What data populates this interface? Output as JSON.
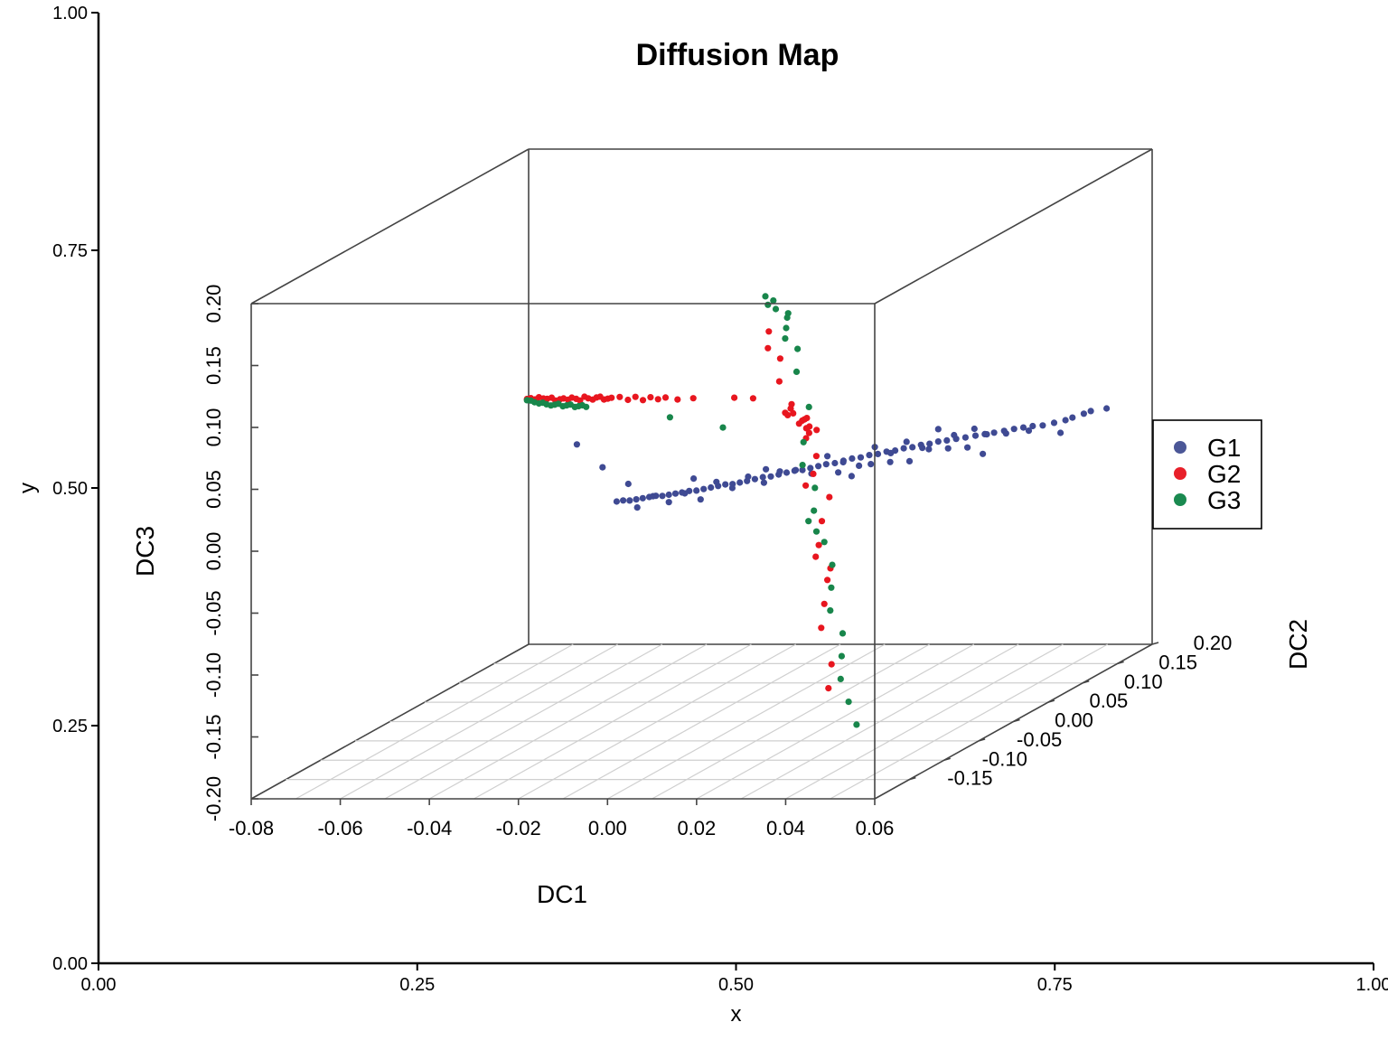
{
  "chart_data": {
    "type": "scatter",
    "title": "Diffusion Map",
    "outer_axes": {
      "xlabel": "x",
      "ylabel": "y",
      "xlim": [
        0,
        1
      ],
      "ylim": [
        0,
        1
      ],
      "xticks": [
        "0.00",
        "0.25",
        "0.50",
        "0.75",
        "1.00"
      ],
      "yticks": [
        "0.00",
        "0.25",
        "0.50",
        "0.75",
        "1.00"
      ]
    },
    "axes3d": {
      "x": {
        "label": "DC1",
        "range": [
          -0.08,
          0.06
        ],
        "ticks": [
          "-0.08",
          "-0.06",
          "-0.04",
          "-0.02",
          "0.00",
          "0.02",
          "0.04",
          "0.06"
        ]
      },
      "y": {
        "label": "DC2",
        "range": [
          -0.2,
          0.2
        ],
        "ticks": [
          "-0.15",
          "-0.10",
          "-0.05",
          "0.00",
          "0.05",
          "0.10",
          "0.15",
          "0.20"
        ]
      },
      "z": {
        "label": "DC3",
        "range": [
          -0.2,
          0.2
        ],
        "ticks": [
          "-0.20",
          "-0.15",
          "-0.10",
          "-0.05",
          "0.00",
          "0.05",
          "0.10",
          "0.15",
          "0.20"
        ]
      }
    },
    "grid": true,
    "legend": {
      "position": "right",
      "entries": [
        {
          "label": "G1",
          "color": "#4b5797"
        },
        {
          "label": "G2",
          "color": "#e8202a"
        },
        {
          "label": "G3",
          "color": "#1a8a50"
        }
      ]
    },
    "series": [
      {
        "name": "G1",
        "color": "#3f4a93",
        "x": [
          0.056,
          0.054,
          0.054,
          0.053,
          0.053,
          0.052,
          0.051,
          0.05,
          0.049,
          0.048,
          0.047,
          0.046,
          0.045,
          0.044,
          0.043,
          0.042,
          0.041,
          0.04,
          0.039,
          0.038,
          0.037,
          0.036,
          0.035,
          0.034,
          0.033,
          0.032,
          0.031,
          0.03,
          0.029,
          0.028,
          0.027,
          0.026,
          0.025,
          0.024,
          0.023,
          0.022,
          0.021,
          0.02,
          0.019,
          0.018,
          0.017,
          0.016,
          0.015,
          0.014,
          0.013,
          0.012,
          0.011,
          0.01,
          0.009,
          0.008,
          0.007,
          0.006,
          0.005,
          0.004,
          0.003,
          0.002,
          0.001,
          0.0,
          -0.001,
          -0.002,
          0.045,
          0.042,
          0.04,
          0.038,
          0.036,
          0.034,
          0.032,
          0.03,
          0.028,
          0.026,
          0.024,
          0.022,
          0.02,
          0.018,
          0.016,
          0.014,
          0.012,
          0.01,
          0.008,
          0.006,
          0.004,
          0.002,
          0.055,
          0.05,
          0.03,
          0.02,
          0.01,
          0.0,
          -0.005,
          -0.01,
          0.051,
          0.049,
          0.047,
          0.045,
          0.043,
          0.041,
          0.039,
          0.037,
          0.035,
          0.033
        ],
        "y": [
          0.16,
          0.15,
          0.14,
          0.13,
          0.12,
          0.11,
          0.1,
          0.092,
          0.085,
          0.078,
          0.07,
          0.062,
          0.055,
          0.048,
          0.04,
          0.033,
          0.026,
          0.02,
          0.014,
          0.008,
          0.002,
          -0.004,
          -0.01,
          -0.016,
          -0.022,
          -0.028,
          -0.034,
          -0.04,
          -0.046,
          -0.052,
          -0.058,
          -0.063,
          -0.068,
          -0.073,
          -0.078,
          -0.083,
          -0.088,
          -0.093,
          -0.098,
          -0.103,
          -0.108,
          -0.112,
          -0.116,
          -0.12,
          -0.124,
          -0.128,
          -0.132,
          -0.136,
          -0.14,
          -0.144,
          -0.147,
          -0.15,
          -0.153,
          -0.156,
          -0.159,
          -0.162,
          -0.165,
          -0.168,
          -0.171,
          -0.174,
          0.04,
          0.03,
          0.02,
          0.01,
          0.0,
          -0.01,
          -0.02,
          -0.03,
          -0.04,
          -0.05,
          -0.06,
          -0.07,
          -0.08,
          -0.09,
          -0.1,
          -0.11,
          -0.12,
          -0.13,
          -0.14,
          -0.15,
          -0.16,
          -0.17,
          0.1,
          0.02,
          -0.06,
          -0.1,
          -0.14,
          -0.17,
          -0.175,
          -0.18,
          0.08,
          0.06,
          0.045,
          0.03,
          0.015,
          0.0,
          -0.015,
          -0.03,
          -0.045,
          -0.06
        ],
        "z": [
          0.003,
          0.004,
          0.005,
          0.005,
          0.006,
          0.007,
          0.008,
          0.01,
          0.011,
          0.012,
          0.013,
          0.014,
          0.015,
          0.016,
          0.017,
          0.018,
          0.019,
          0.02,
          0.02,
          0.021,
          0.021,
          0.022,
          0.022,
          0.023,
          0.023,
          0.024,
          0.024,
          0.025,
          0.025,
          0.025,
          0.026,
          0.026,
          0.026,
          0.026,
          0.027,
          0.027,
          0.027,
          0.027,
          0.028,
          0.028,
          0.028,
          0.028,
          0.028,
          0.029,
          0.029,
          0.029,
          0.029,
          0.029,
          0.03,
          0.03,
          0.03,
          0.03,
          0.03,
          0.031,
          0.031,
          0.031,
          0.031,
          0.031,
          0.032,
          0.032,
          0.024,
          0.022,
          0.03,
          0.018,
          0.026,
          0.02,
          0.028,
          0.016,
          0.022,
          0.03,
          0.019,
          0.025,
          0.027,
          0.021,
          0.029,
          0.023,
          0.031,
          0.02,
          0.028,
          0.024,
          0.032,
          0.026,
          0.002,
          0.01,
          0.02,
          0.035,
          0.04,
          0.045,
          0.06,
          0.08,
          0.01,
          0.014,
          0.018,
          0.012,
          0.016,
          0.02,
          0.015,
          0.019,
          0.022,
          0.017
        ]
      },
      {
        "name": "G2",
        "color": "#e8161f",
        "x": [
          -0.05,
          -0.049,
          -0.048,
          -0.047,
          -0.046,
          -0.045,
          -0.044,
          -0.043,
          -0.042,
          -0.041,
          -0.04,
          -0.039,
          -0.038,
          -0.037,
          -0.036,
          -0.035,
          -0.034,
          -0.033,
          -0.032,
          -0.031,
          -0.03,
          -0.029,
          -0.027,
          -0.025,
          -0.023,
          -0.021,
          -0.019,
          -0.017,
          -0.015,
          -0.012,
          -0.008,
          0.002,
          0.007,
          0.03,
          0.029,
          0.031,
          0.03,
          0.032,
          0.031,
          0.029,
          0.03,
          0.028,
          0.032,
          0.031,
          0.03,
          0.029,
          0.031,
          0.03,
          0.032,
          0.03,
          0.029,
          0.031,
          0.03,
          0.028,
          0.033,
          0.031,
          0.03,
          0.029,
          0.032,
          0.031,
          0.03,
          0.029,
          0.031,
          0.03
        ],
        "y": [
          0.005,
          0.004,
          0.004,
          0.003,
          0.003,
          0.002,
          0.002,
          0.001,
          0.001,
          0.0,
          0.0,
          -0.001,
          -0.001,
          -0.002,
          -0.002,
          -0.003,
          -0.003,
          -0.004,
          -0.005,
          -0.006,
          -0.007,
          -0.008,
          -0.009,
          -0.01,
          -0.012,
          -0.014,
          -0.016,
          -0.018,
          -0.02,
          -0.022,
          -0.025,
          -0.03,
          -0.035,
          -0.16,
          -0.155,
          -0.15,
          -0.145,
          -0.14,
          -0.135,
          -0.13,
          -0.125,
          -0.12,
          -0.118,
          -0.115,
          -0.112,
          -0.11,
          -0.108,
          -0.106,
          -0.104,
          -0.102,
          -0.1,
          -0.098,
          -0.096,
          -0.094,
          -0.092,
          -0.09,
          -0.088,
          -0.086,
          -0.084,
          -0.082,
          -0.08,
          -0.078,
          -0.076,
          -0.074
        ],
        "z": [
          0.059,
          0.06,
          0.059,
          0.061,
          0.06,
          0.06,
          0.061,
          0.059,
          0.06,
          0.061,
          0.06,
          0.062,
          0.061,
          0.06,
          0.063,
          0.062,
          0.061,
          0.063,
          0.064,
          0.062,
          0.063,
          0.064,
          0.065,
          0.063,
          0.066,
          0.064,
          0.067,
          0.066,
          0.068,
          0.067,
          0.069,
          0.071,
          0.072,
          0.165,
          0.15,
          0.14,
          0.12,
          0.1,
          0.095,
          0.09,
          0.088,
          0.085,
          0.082,
          0.08,
          0.078,
          0.075,
          0.072,
          0.07,
          0.068,
          0.065,
          0.06,
          0.045,
          0.03,
          0.02,
          0.01,
          -0.01,
          -0.03,
          -0.04,
          -0.05,
          -0.06,
          -0.08,
          -0.1,
          -0.13,
          -0.15
        ]
      },
      {
        "name": "G3",
        "color": "#18864b",
        "x": [
          -0.05,
          -0.049,
          -0.048,
          -0.047,
          -0.046,
          -0.045,
          -0.044,
          -0.043,
          -0.042,
          -0.041,
          -0.04,
          -0.039,
          -0.038,
          -0.037,
          -0.036,
          -0.035,
          -0.014,
          0.001,
          0.03,
          0.031,
          0.029,
          0.03,
          0.032,
          0.031,
          0.03,
          0.029,
          0.031,
          0.03,
          0.032,
          0.03,
          0.029,
          0.031,
          0.03,
          0.028,
          0.029,
          0.03,
          0.031,
          0.03,
          0.029,
          0.031,
          0.03,
          0.029,
          0.03,
          0.031
        ],
        "y": [
          0.005,
          0.004,
          0.003,
          0.003,
          0.002,
          0.001,
          0.001,
          0.0,
          -0.001,
          -0.001,
          -0.002,
          -0.003,
          -0.003,
          -0.004,
          -0.005,
          -0.006,
          -0.02,
          -0.04,
          -0.165,
          -0.16,
          -0.155,
          -0.15,
          -0.145,
          -0.14,
          -0.135,
          -0.13,
          -0.125,
          -0.12,
          -0.115,
          -0.11,
          -0.105,
          -0.1,
          -0.095,
          -0.09,
          -0.085,
          -0.08,
          -0.075,
          -0.07,
          -0.065,
          -0.06,
          -0.055,
          -0.05,
          -0.045,
          -0.04
        ],
        "z": [
          0.058,
          0.058,
          0.057,
          0.056,
          0.057,
          0.056,
          0.055,
          0.056,
          0.057,
          0.055,
          0.056,
          0.057,
          0.055,
          0.056,
          0.057,
          0.056,
          0.052,
          0.05,
          0.195,
          0.19,
          0.185,
          0.18,
          0.175,
          0.17,
          0.16,
          0.15,
          0.14,
          0.12,
          0.09,
          0.06,
          0.04,
          0.02,
          0.0,
          -0.01,
          -0.02,
          -0.03,
          -0.05,
          -0.07,
          -0.09,
          -0.11,
          -0.13,
          -0.15,
          -0.17,
          -0.19
        ]
      }
    ]
  }
}
